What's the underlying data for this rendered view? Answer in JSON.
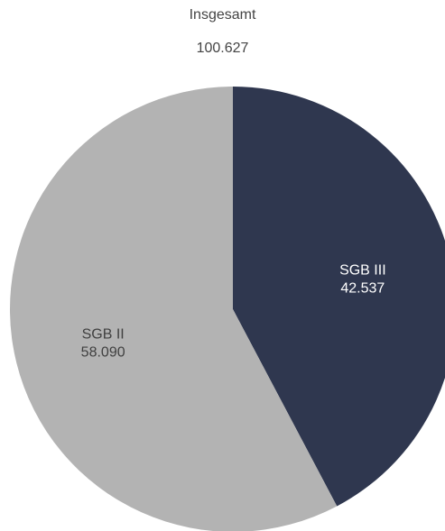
{
  "chart_data": {
    "type": "pie",
    "title": "Insgesamt",
    "total_label": "100.627",
    "slices": [
      {
        "name": "SGB III",
        "value": 42537,
        "value_label": "42.537",
        "color": "#2f374f",
        "label_color": "#ffffff"
      },
      {
        "name": "SGB II",
        "value": 58090,
        "value_label": "58.090",
        "color": "#b3b3b3",
        "label_color": "#404040"
      }
    ],
    "start": "12 o'clock",
    "direction": "clockwise"
  }
}
